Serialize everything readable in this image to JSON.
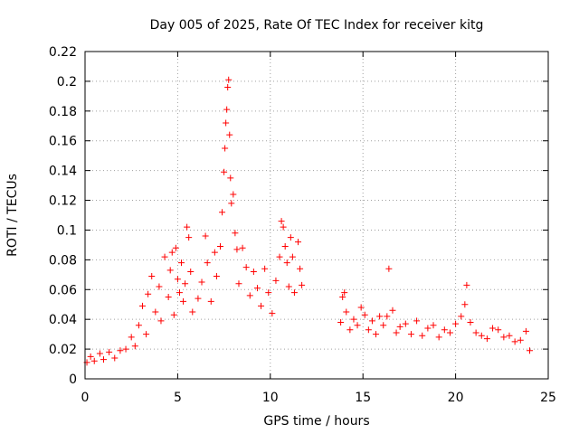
{
  "chart_data": {
    "type": "scatter",
    "title": "Day 005 of 2025, Rate Of TEC Index for receiver kitg",
    "xlabel": "GPS time / hours",
    "ylabel": "ROTI / TECUs",
    "xlim": [
      0,
      25
    ],
    "ylim": [
      0,
      0.22
    ],
    "xticks": [
      0,
      5,
      10,
      15,
      20,
      25
    ],
    "xtick_labels": [
      "0",
      "5",
      "10",
      "15",
      "20",
      "25"
    ],
    "yticks": [
      0,
      0.02,
      0.04,
      0.06,
      0.08,
      0.1,
      0.12,
      0.14,
      0.16,
      0.18,
      0.2,
      0.22
    ],
    "ytick_labels": [
      "0",
      "0.02",
      "0.04",
      "0.06",
      "0.08",
      "0.1",
      "0.12",
      "0.14",
      "0.16",
      "0.18",
      "0.2",
      "0.22"
    ],
    "grid": true,
    "marker": "plus",
    "series_color": "#ff0000",
    "series": [
      {
        "name": "ROTI",
        "x": [
          0.1,
          0.3,
          0.5,
          0.8,
          1.0,
          1.3,
          1.6,
          1.9,
          2.2,
          2.5,
          2.7,
          2.9,
          3.1,
          3.3,
          3.4,
          3.6,
          3.8,
          4.0,
          4.1,
          4.3,
          4.5,
          4.6,
          4.7,
          4.8,
          4.9,
          5.0,
          5.1,
          5.2,
          5.3,
          5.4,
          5.5,
          5.6,
          5.7,
          5.8,
          6.1,
          6.3,
          6.5,
          6.6,
          6.8,
          7.0,
          7.1,
          7.3,
          7.4,
          7.5,
          7.55,
          7.6,
          7.65,
          7.7,
          7.75,
          7.8,
          7.85,
          7.9,
          8.0,
          8.1,
          8.2,
          8.3,
          8.5,
          8.7,
          8.9,
          9.1,
          9.3,
          9.5,
          9.7,
          9.9,
          10.1,
          10.3,
          10.5,
          10.6,
          10.7,
          10.8,
          10.9,
          11.0,
          11.1,
          11.2,
          11.3,
          11.5,
          11.6,
          11.7,
          13.8,
          13.9,
          14.0,
          14.1,
          14.3,
          14.5,
          14.7,
          14.9,
          15.1,
          15.3,
          15.5,
          15.7,
          15.9,
          16.1,
          16.3,
          16.4,
          16.6,
          16.8,
          17.0,
          17.3,
          17.6,
          17.9,
          18.2,
          18.5,
          18.8,
          19.1,
          19.4,
          19.7,
          20.0,
          20.3,
          20.5,
          20.6,
          20.8,
          21.1,
          21.4,
          21.7,
          22.0,
          22.3,
          22.6,
          22.9,
          23.2,
          23.5,
          23.8,
          24.0
        ],
        "y": [
          0.011,
          0.015,
          0.012,
          0.017,
          0.013,
          0.018,
          0.014,
          0.019,
          0.02,
          0.028,
          0.022,
          0.036,
          0.049,
          0.03,
          0.057,
          0.069,
          0.045,
          0.062,
          0.039,
          0.082,
          0.055,
          0.073,
          0.085,
          0.043,
          0.088,
          0.067,
          0.058,
          0.078,
          0.052,
          0.064,
          0.102,
          0.095,
          0.072,
          0.045,
          0.054,
          0.065,
          0.096,
          0.078,
          0.052,
          0.085,
          0.069,
          0.089,
          0.112,
          0.139,
          0.155,
          0.172,
          0.181,
          0.196,
          0.201,
          0.164,
          0.135,
          0.118,
          0.124,
          0.098,
          0.087,
          0.064,
          0.088,
          0.075,
          0.056,
          0.072,
          0.061,
          0.049,
          0.074,
          0.058,
          0.044,
          0.066,
          0.082,
          0.106,
          0.102,
          0.089,
          0.078,
          0.062,
          0.095,
          0.082,
          0.058,
          0.092,
          0.074,
          0.063,
          0.038,
          0.055,
          0.058,
          0.045,
          0.033,
          0.04,
          0.036,
          0.048,
          0.043,
          0.033,
          0.039,
          0.03,
          0.042,
          0.036,
          0.042,
          0.074,
          0.046,
          0.031,
          0.035,
          0.037,
          0.03,
          0.039,
          0.029,
          0.034,
          0.036,
          0.028,
          0.033,
          0.031,
          0.037,
          0.042,
          0.05,
          0.063,
          0.038,
          0.031,
          0.029,
          0.027,
          0.034,
          0.033,
          0.028,
          0.029,
          0.025,
          0.026,
          0.032,
          0.019
        ]
      }
    ]
  }
}
